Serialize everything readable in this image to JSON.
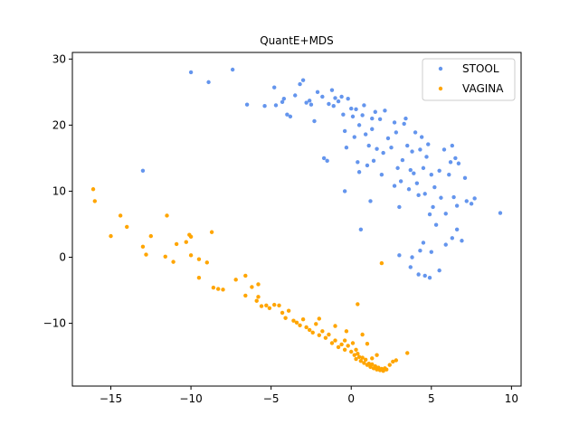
{
  "chart_data": {
    "type": "scatter",
    "title": "QuantE+MDS",
    "xlabel": "",
    "ylabel": "",
    "xlim": [
      -17.4,
      10.6
    ],
    "ylim": [
      -19.5,
      31.0
    ],
    "xticks": [
      -15,
      -10,
      -5,
      0,
      5,
      10
    ],
    "yticks": [
      -10,
      0,
      10,
      20,
      30
    ],
    "xtick_labels": [
      "−15",
      "−10",
      "−5",
      "0",
      "5",
      "10"
    ],
    "ytick_labels": [
      "−10",
      "0",
      "10",
      "20",
      "30"
    ],
    "grid": false,
    "legend_position": "top-right",
    "series": [
      {
        "name": "STOOL",
        "color": "#6495ed",
        "points": [
          [
            -10.0,
            28.0
          ],
          [
            -7.4,
            28.4
          ],
          [
            -8.9,
            26.5
          ],
          [
            -6.5,
            23.1
          ],
          [
            -13.0,
            13.1
          ],
          [
            -5.4,
            22.9
          ],
          [
            -4.8,
            25.7
          ],
          [
            -4.7,
            23.0
          ],
          [
            -4.3,
            23.5
          ],
          [
            -4.2,
            24.0
          ],
          [
            -4.0,
            21.6
          ],
          [
            -3.8,
            21.3
          ],
          [
            -3.5,
            24.5
          ],
          [
            -3.2,
            26.2
          ],
          [
            -3.0,
            26.8
          ],
          [
            -2.8,
            23.4
          ],
          [
            -2.6,
            23.7
          ],
          [
            -2.5,
            23.1
          ],
          [
            -2.3,
            20.6
          ],
          [
            -2.1,
            25.0
          ],
          [
            -1.8,
            24.3
          ],
          [
            -1.7,
            15.0
          ],
          [
            -1.5,
            14.6
          ],
          [
            -1.4,
            23.2
          ],
          [
            -1.2,
            25.3
          ],
          [
            -1.1,
            22.9
          ],
          [
            -1.0,
            24.1
          ],
          [
            -0.8,
            23.6
          ],
          [
            -0.6,
            24.3
          ],
          [
            -0.5,
            21.6
          ],
          [
            -0.4,
            19.1
          ],
          [
            -0.3,
            16.6
          ],
          [
            -0.4,
            10.0
          ],
          [
            -0.2,
            24.0
          ],
          [
            0.0,
            22.5
          ],
          [
            0.1,
            21.3
          ],
          [
            0.2,
            18.2
          ],
          [
            0.3,
            22.4
          ],
          [
            0.4,
            14.4
          ],
          [
            0.5,
            12.9
          ],
          [
            0.6,
            4.2
          ],
          [
            0.7,
            21.5
          ],
          [
            0.8,
            23.0
          ],
          [
            0.9,
            18.6
          ],
          [
            1.0,
            13.9
          ],
          [
            1.1,
            16.9
          ],
          [
            1.2,
            8.5
          ],
          [
            1.3,
            21.0
          ],
          [
            1.4,
            14.6
          ],
          [
            1.5,
            22.0
          ],
          [
            1.6,
            16.4
          ],
          [
            1.8,
            20.9
          ],
          [
            1.9,
            12.5
          ],
          [
            2.0,
            15.8
          ],
          [
            2.1,
            22.2
          ],
          [
            2.3,
            18.0
          ],
          [
            2.5,
            16.6
          ],
          [
            2.7,
            10.8
          ],
          [
            2.8,
            18.9
          ],
          [
            2.9,
            13.5
          ],
          [
            3.0,
            7.6
          ],
          [
            3.1,
            11.5
          ],
          [
            3.2,
            14.7
          ],
          [
            3.3,
            20.2
          ],
          [
            3.4,
            21.0
          ],
          [
            3.5,
            16.9
          ],
          [
            3.6,
            10.3
          ],
          [
            3.7,
            13.2
          ],
          [
            3.8,
            16.0
          ],
          [
            3.9,
            12.7
          ],
          [
            4.0,
            18.9
          ],
          [
            4.1,
            11.2
          ],
          [
            4.2,
            9.4
          ],
          [
            4.3,
            16.3
          ],
          [
            4.4,
            18.2
          ],
          [
            4.5,
            13.5
          ],
          [
            4.6,
            9.6
          ],
          [
            4.7,
            15.2
          ],
          [
            4.8,
            17.1
          ],
          [
            4.9,
            6.5
          ],
          [
            5.0,
            12.5
          ],
          [
            5.1,
            7.6
          ],
          [
            5.2,
            10.6
          ],
          [
            5.3,
            4.9
          ],
          [
            5.5,
            13.1
          ],
          [
            5.6,
            9.0
          ],
          [
            5.8,
            16.3
          ],
          [
            5.9,
            6.6
          ],
          [
            6.1,
            12.5
          ],
          [
            6.2,
            14.4
          ],
          [
            6.3,
            16.9
          ],
          [
            6.4,
            9.1
          ],
          [
            6.5,
            15.0
          ],
          [
            6.6,
            7.8
          ],
          [
            6.7,
            14.2
          ],
          [
            6.9,
            2.5
          ],
          [
            7.1,
            12.0
          ],
          [
            7.2,
            8.5
          ],
          [
            7.5,
            8.1
          ],
          [
            7.7,
            8.9
          ],
          [
            9.3,
            6.7
          ],
          [
            3.0,
            0.3
          ],
          [
            3.8,
            0.0
          ],
          [
            4.2,
            -2.6
          ],
          [
            4.6,
            -2.8
          ],
          [
            4.9,
            -3.1
          ],
          [
            5.5,
            -2.0
          ],
          [
            4.5,
            2.2
          ],
          [
            5.9,
            1.9
          ],
          [
            6.3,
            2.9
          ],
          [
            3.7,
            -1.5
          ],
          [
            4.3,
            1.0
          ],
          [
            5.0,
            0.8
          ],
          [
            6.6,
            4.2
          ],
          [
            1.3,
            19.4
          ],
          [
            2.7,
            20.4
          ],
          [
            0.5,
            20.0
          ]
        ]
      },
      {
        "name": "VAGINA",
        "color": "#ffa500",
        "points": [
          [
            -16.1,
            10.3
          ],
          [
            -16.0,
            8.5
          ],
          [
            -14.4,
            6.3
          ],
          [
            -14.0,
            4.6
          ],
          [
            -15.0,
            3.2
          ],
          [
            -13.0,
            1.6
          ],
          [
            -12.8,
            0.4
          ],
          [
            -12.5,
            3.2
          ],
          [
            -11.5,
            6.3
          ],
          [
            -11.6,
            0.1
          ],
          [
            -11.1,
            -0.7
          ],
          [
            -10.9,
            2.0
          ],
          [
            -10.3,
            2.3
          ],
          [
            -10.1,
            3.4
          ],
          [
            -10.0,
            3.1
          ],
          [
            -10.0,
            0.3
          ],
          [
            -9.5,
            -0.3
          ],
          [
            -9.5,
            -3.1
          ],
          [
            -9.0,
            -0.8
          ],
          [
            -8.7,
            3.8
          ],
          [
            -8.6,
            -4.6
          ],
          [
            -8.3,
            -4.8
          ],
          [
            -8.0,
            -4.9
          ],
          [
            -6.6,
            -2.8
          ],
          [
            -7.2,
            -3.4
          ],
          [
            -6.6,
            -5.8
          ],
          [
            -6.2,
            -4.5
          ],
          [
            -5.9,
            -6.6
          ],
          [
            -5.8,
            -4.1
          ],
          [
            -5.6,
            -7.4
          ],
          [
            -5.3,
            -7.3
          ],
          [
            -5.1,
            -7.7
          ],
          [
            -4.8,
            -7.2
          ],
          [
            -4.5,
            -7.3
          ],
          [
            -4.3,
            -8.4
          ],
          [
            -4.1,
            -9.2
          ],
          [
            -3.9,
            -8.1
          ],
          [
            -3.6,
            -9.6
          ],
          [
            -3.4,
            -9.9
          ],
          [
            -3.2,
            -10.3
          ],
          [
            -3.0,
            -9.4
          ],
          [
            -2.8,
            -10.6
          ],
          [
            -2.6,
            -11.0
          ],
          [
            -2.4,
            -11.4
          ],
          [
            -2.2,
            -10.1
          ],
          [
            -2.0,
            -11.8
          ],
          [
            -1.8,
            -11.2
          ],
          [
            -1.6,
            -12.2
          ],
          [
            -1.4,
            -11.7
          ],
          [
            -1.2,
            -13.0
          ],
          [
            -1.0,
            -12.6
          ],
          [
            -0.8,
            -13.6
          ],
          [
            -0.6,
            -13.2
          ],
          [
            -0.4,
            -14.0
          ],
          [
            -0.2,
            -13.4
          ],
          [
            0.0,
            -14.3
          ],
          [
            0.1,
            -13.0
          ],
          [
            0.2,
            -14.8
          ],
          [
            0.3,
            -15.4
          ],
          [
            0.4,
            -14.6
          ],
          [
            0.5,
            -15.1
          ],
          [
            0.6,
            -15.7
          ],
          [
            0.7,
            -15.2
          ],
          [
            0.8,
            -16.0
          ],
          [
            0.9,
            -15.5
          ],
          [
            1.0,
            -16.3
          ],
          [
            1.1,
            -16.1
          ],
          [
            1.2,
            -16.6
          ],
          [
            1.3,
            -16.2
          ],
          [
            1.4,
            -16.8
          ],
          [
            1.5,
            -16.5
          ],
          [
            1.6,
            -17.0
          ],
          [
            1.7,
            -16.7
          ],
          [
            1.8,
            -17.1
          ],
          [
            1.9,
            -16.9
          ],
          [
            2.0,
            -17.2
          ],
          [
            2.1,
            -16.8
          ],
          [
            2.2,
            -17.0
          ],
          [
            2.4,
            -16.3
          ],
          [
            2.6,
            -15.8
          ],
          [
            2.8,
            -15.6
          ],
          [
            3.5,
            -14.5
          ],
          [
            1.6,
            -14.8
          ],
          [
            1.0,
            -13.1
          ],
          [
            0.7,
            -11.7
          ],
          [
            0.4,
            -7.1
          ],
          [
            1.9,
            -0.9
          ],
          [
            -0.3,
            -11.2
          ],
          [
            -2.0,
            -9.3
          ],
          [
            -1.0,
            -10.4
          ],
          [
            -5.8,
            -6.0
          ],
          [
            -0.4,
            -12.6
          ],
          [
            0.3,
            -14.0
          ],
          [
            1.3,
            -15.3
          ]
        ]
      }
    ]
  }
}
